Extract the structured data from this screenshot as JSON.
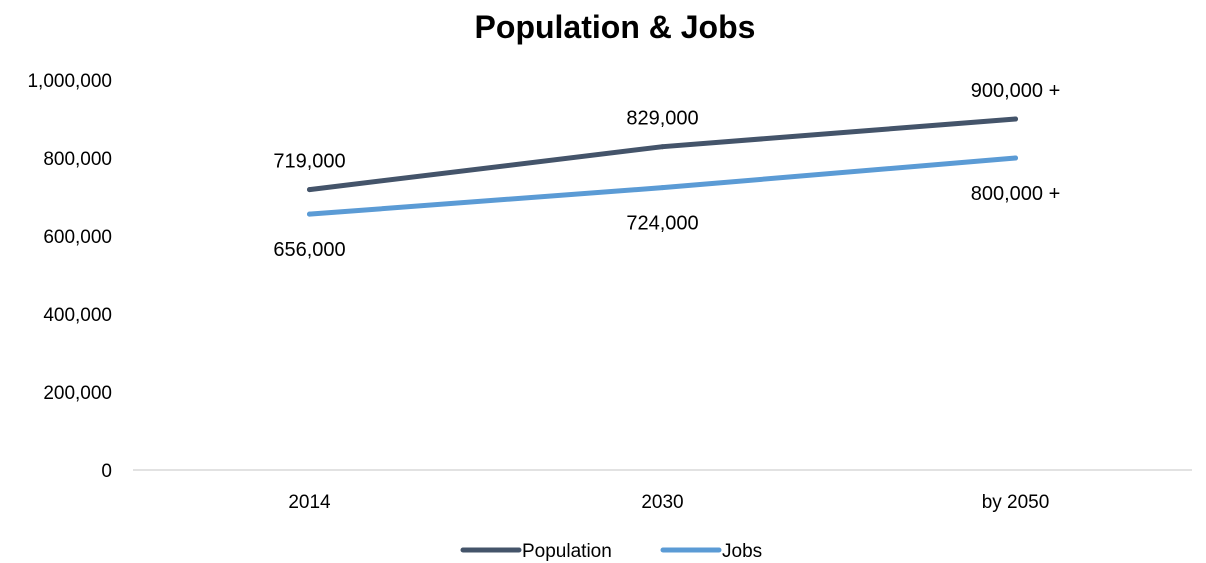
{
  "chart_data": {
    "type": "line",
    "title": "Population & Jobs",
    "categories": [
      "2014",
      "2030",
      "by 2050"
    ],
    "y_ticks": [
      "0",
      "200,000",
      "400,000",
      "600,000",
      "800,000",
      "1,000,000"
    ],
    "ylim": [
      0,
      1000000
    ],
    "grid": false,
    "legend_position": "bottom",
    "series": [
      {
        "name": "Population",
        "color": "#44546a",
        "values": [
          719000,
          829000,
          900000
        ],
        "labels": [
          "719,000",
          "829,000",
          "900,000 +"
        ],
        "label_position": "above"
      },
      {
        "name": "Jobs",
        "color": "#5b9bd5",
        "values": [
          656000,
          724000,
          800000
        ],
        "labels": [
          "656,000",
          "724,000",
          "800,000 +"
        ],
        "label_position": "below"
      }
    ]
  }
}
